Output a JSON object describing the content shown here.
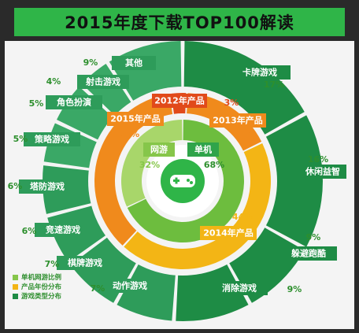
{
  "title": "2015年度下载TOP100解读",
  "colors": {
    "bg": "#2a2a2a",
    "panel": "#f4f4f4",
    "accent": "#2fb548",
    "dark_green": "#1e8c45",
    "teal": "#2e9c5a",
    "orange": "#f08a1c",
    "yellow": "#f3b515",
    "light_green": "#86c64a",
    "center_green": "#2fb548"
  },
  "legend": [
    {
      "label": "单机网游比例",
      "color": "#86c64a"
    },
    {
      "label": "产品年份分布",
      "color": "#f3b515"
    },
    {
      "label": "游戏类型分布",
      "color": "#1e8c45"
    }
  ],
  "chart_data": [
    {
      "type": "pie",
      "ring": "inner",
      "name": "单机网游比例",
      "slices": [
        {
          "label": "单机",
          "value": 68
        },
        {
          "label": "网游",
          "value": 32
        }
      ]
    },
    {
      "type": "pie",
      "ring": "middle",
      "name": "产品年份分布",
      "slices": [
        {
          "label": "2012年产品",
          "value": 3
        },
        {
          "label": "2013年产品",
          "value": 17
        },
        {
          "label": "2014年产品",
          "value": 44
        },
        {
          "label": "2015年产品",
          "value": 36
        }
      ]
    },
    {
      "type": "pie",
      "ring": "outer",
      "name": "游戏类型分布",
      "slices": [
        {
          "label": "卡牌游戏",
          "value": 17
        },
        {
          "label": "休闲益智",
          "value": 16
        },
        {
          "label": "躲避跑酷",
          "value": 9
        },
        {
          "label": "消除游戏",
          "value": 9
        },
        {
          "label": "动作游戏",
          "value": 7
        },
        {
          "label": "棋牌游戏",
          "value": 7
        },
        {
          "label": "竞速游戏",
          "value": 6
        },
        {
          "label": "塔防游戏",
          "value": 6
        },
        {
          "label": "策略游戏",
          "value": 5
        },
        {
          "label": "角色扮演",
          "value": 5
        },
        {
          "label": "射击游戏",
          "value": 4
        },
        {
          "label": "其他",
          "value": 9
        }
      ]
    }
  ]
}
